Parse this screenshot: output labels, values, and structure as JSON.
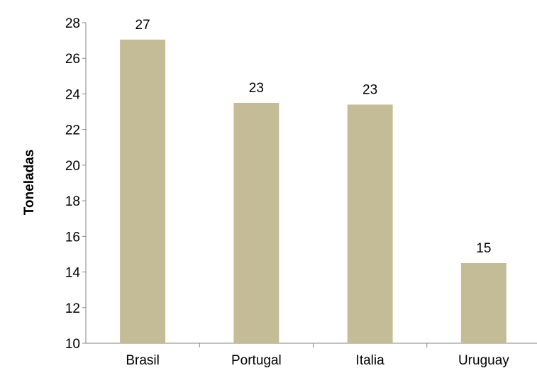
{
  "chart_data": {
    "type": "bar",
    "title": "",
    "xlabel": "",
    "ylabel": "Toneladas",
    "categories": [
      "Brasil",
      "Portugal",
      "Italia",
      "Uruguay"
    ],
    "values": [
      27.05,
      23.5,
      23.4,
      14.5
    ],
    "data_labels": [
      "27",
      "23",
      "23",
      "15"
    ],
    "ylim": [
      10,
      28
    ],
    "yticks": [
      10,
      12,
      14,
      16,
      18,
      20,
      22,
      24,
      26,
      28
    ],
    "grid": false,
    "legend": "none",
    "colors": {
      "bar": "#c4bc96",
      "axis": "#868686",
      "text": "#000000"
    }
  }
}
